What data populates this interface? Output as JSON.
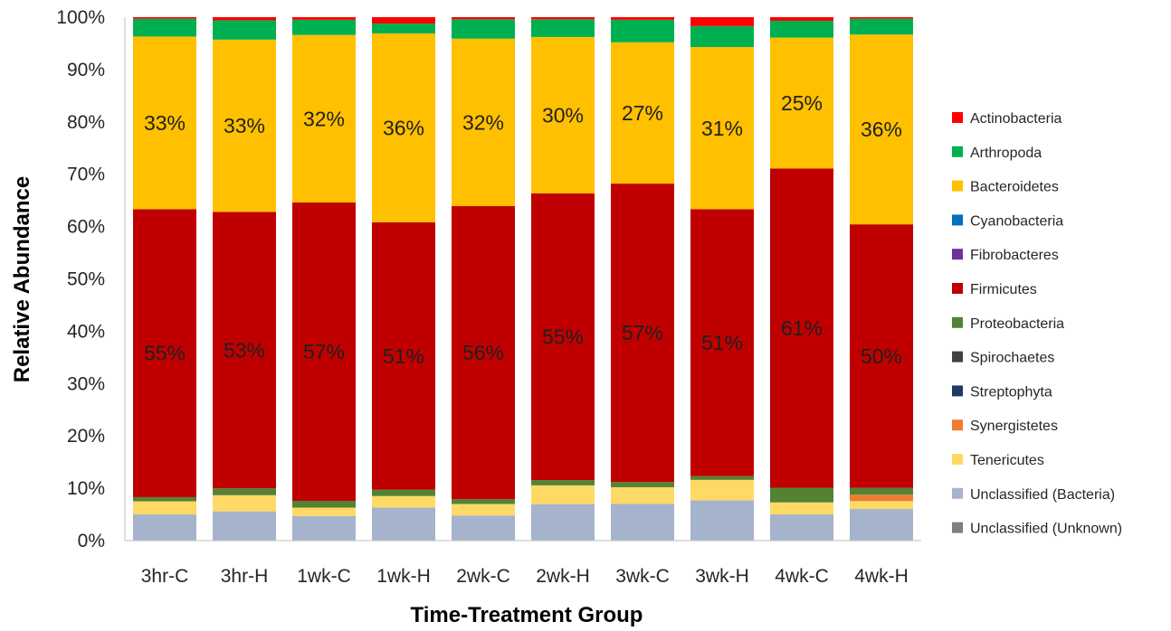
{
  "chart_data": {
    "type": "bar",
    "stacked": true,
    "percent": true,
    "xlabel": "Time-Treatment Group",
    "ylabel": "Relative Abundance",
    "ylim": [
      0,
      100
    ],
    "y_ticks": [
      "0%",
      "10%",
      "20%",
      "30%",
      "40%",
      "50%",
      "60%",
      "70%",
      "80%",
      "90%",
      "100%"
    ],
    "grid": false,
    "legend_position": "right",
    "categories": [
      "3hr-C",
      "3hr-H",
      "1wk-C",
      "1wk-H",
      "2wk-C",
      "2wk-H",
      "3wk-C",
      "3wk-H",
      "4wk-C",
      "4wk-H"
    ],
    "series": [
      {
        "name": "Unclassified (Unknown)",
        "color": "#7f7f7f",
        "values": [
          0,
          0,
          0,
          0,
          0,
          0,
          0,
          0,
          0,
          0
        ]
      },
      {
        "name": "Unclassified (Bacteria)",
        "color": "#a6b3cc",
        "values": [
          5.0,
          5.6,
          4.7,
          6.3,
          4.8,
          7.0,
          7.0,
          7.7,
          5.0,
          6.0
        ]
      },
      {
        "name": "Tenericutes",
        "color": "#ffd966",
        "values": [
          2.5,
          3.1,
          1.6,
          2.2,
          2.2,
          3.6,
          3.2,
          3.9,
          2.3,
          1.5
        ]
      },
      {
        "name": "Synergistetes",
        "color": "#ed7d31",
        "values": [
          0,
          0,
          0,
          0,
          0,
          0,
          0,
          0,
          0,
          1.2
        ]
      },
      {
        "name": "Streptophyta",
        "color": "#203864",
        "values": [
          0,
          0,
          0,
          0,
          0,
          0,
          0,
          0,
          0,
          0
        ]
      },
      {
        "name": "Spirochaetes",
        "color": "#404040",
        "values": [
          0,
          0,
          0,
          0,
          0,
          0,
          0,
          0,
          0,
          0
        ]
      },
      {
        "name": "Proteobacteria",
        "color": "#548235",
        "values": [
          0.8,
          1.3,
          1.3,
          1.2,
          0.9,
          1.0,
          1.0,
          0.7,
          2.8,
          1.3
        ]
      },
      {
        "name": "Firmicutes",
        "color": "#c00000",
        "values": [
          55,
          53,
          57,
          51,
          56,
          55,
          57,
          51,
          61,
          50
        ]
      },
      {
        "name": "Fibrobacteres",
        "color": "#7030a0",
        "values": [
          0,
          0,
          0,
          0,
          0,
          0,
          0,
          0,
          0,
          0
        ]
      },
      {
        "name": "Cyanobacteria",
        "color": "#0070c0",
        "values": [
          0,
          0,
          0,
          0,
          0,
          0,
          0,
          0,
          0,
          0
        ]
      },
      {
        "name": "Bacteroidetes",
        "color": "#ffc000",
        "values": [
          33,
          33,
          32,
          36,
          32,
          30,
          27,
          31,
          25,
          36
        ]
      },
      {
        "name": "Arthropoda",
        "color": "#00b050",
        "values": [
          3.4,
          3.7,
          2.9,
          1.9,
          3.7,
          3.4,
          4.3,
          4.0,
          3.2,
          3.0
        ]
      },
      {
        "name": "Actinobacteria",
        "color": "#ff0000",
        "values": [
          0.3,
          0.6,
          0.5,
          1.2,
          0.4,
          0.4,
          0.5,
          1.7,
          0.7,
          0.3
        ]
      }
    ],
    "data_labels": [
      {
        "series": "Bacteroidetes",
        "labels": [
          "33%",
          "33%",
          "32%",
          "36%",
          "32%",
          "30%",
          "27%",
          "31%",
          "25%",
          "36%"
        ]
      },
      {
        "series": "Firmicutes",
        "labels": [
          "55%",
          "53%",
          "57%",
          "51%",
          "56%",
          "55%",
          "57%",
          "51%",
          "61%",
          "50%"
        ]
      }
    ],
    "legend": [
      "Actinobacteria",
      "Arthropoda",
      "Bacteroidetes",
      "Cyanobacteria",
      "Fibrobacteres",
      "Firmicutes",
      "Proteobacteria",
      "Spirochaetes",
      "Streptophyta",
      "Synergistetes",
      "Tenericutes",
      "Unclassified (Bacteria)",
      "Unclassified (Unknown)"
    ]
  }
}
